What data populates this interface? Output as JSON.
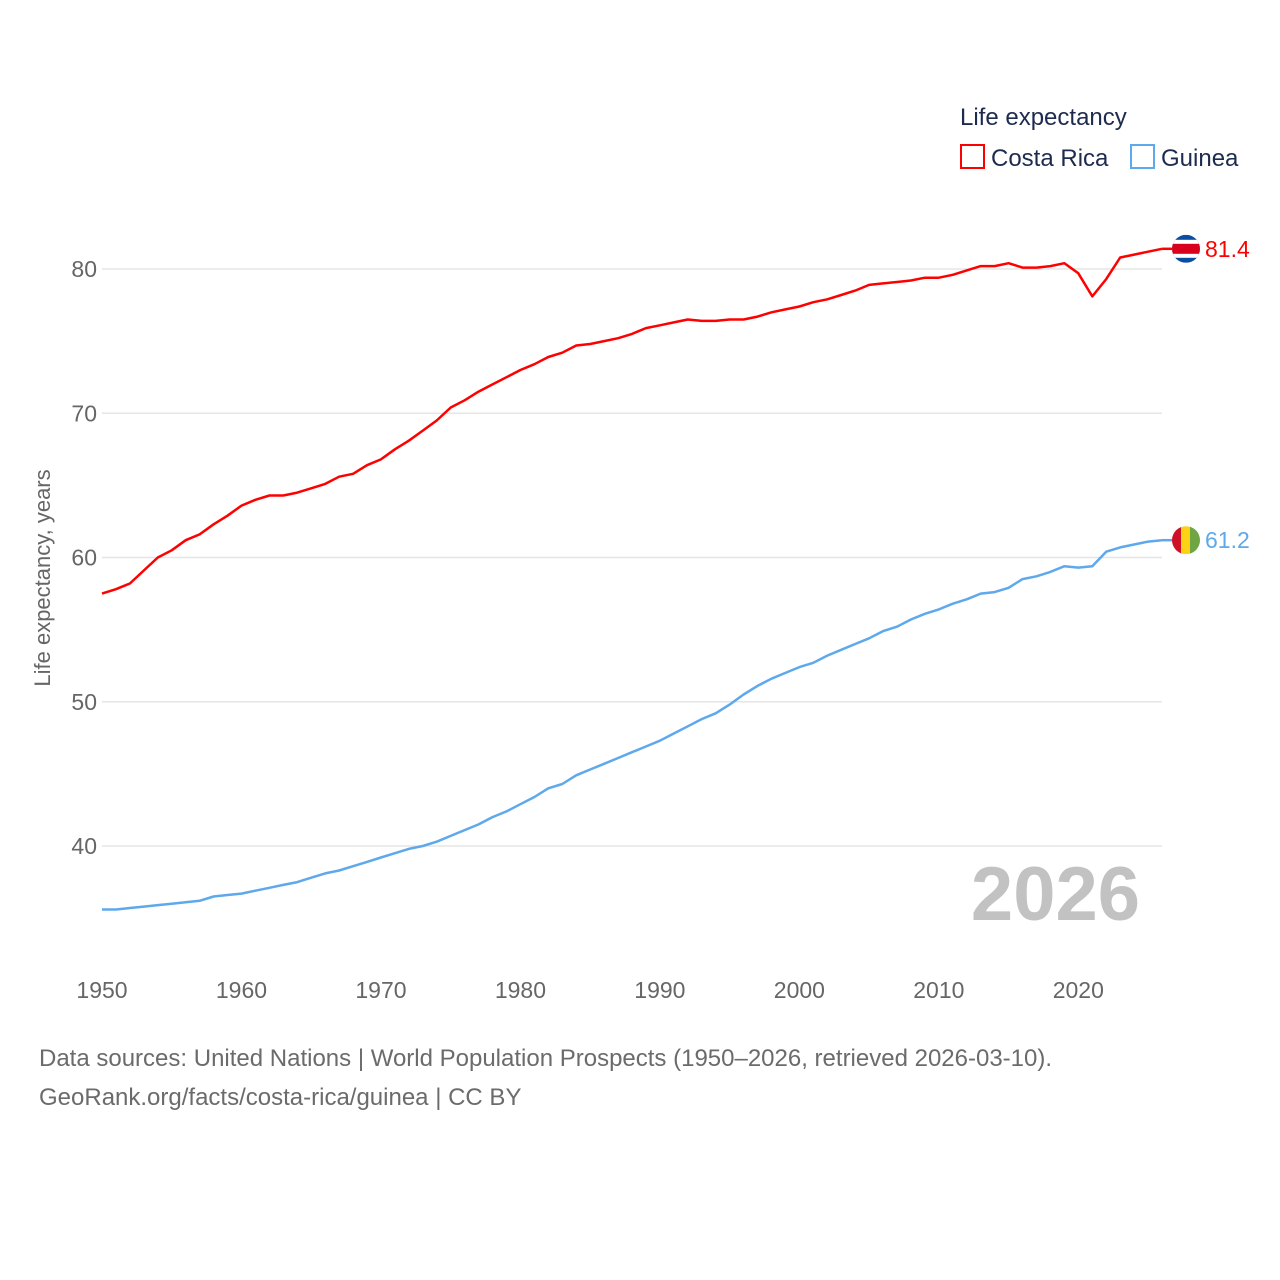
{
  "chart_data": {
    "type": "line",
    "ylabel": "Life expectancy, years",
    "xlabel": "",
    "xlim": [
      1950,
      2026
    ],
    "ylim": [
      33.5,
      84
    ],
    "yticks": [
      40,
      50,
      60,
      70,
      80
    ],
    "xticks": [
      1950,
      1960,
      1970,
      1980,
      1990,
      2000,
      2010,
      2020
    ],
    "grid": true,
    "legend": {
      "title": "Life expectancy",
      "placement": "top-right"
    },
    "year_label": "2026",
    "x_start": 1950,
    "series": [
      {
        "name": "Costa Rica",
        "color": "#ff0000",
        "end_label": "81.4",
        "values": [
          57.5,
          57.8,
          58.2,
          59.1,
          60.0,
          60.5,
          61.2,
          61.6,
          62.3,
          62.9,
          63.6,
          64.0,
          64.3,
          64.3,
          64.5,
          64.8,
          65.1,
          65.6,
          65.8,
          66.4,
          66.8,
          67.5,
          68.1,
          68.8,
          69.5,
          70.4,
          70.9,
          71.5,
          72.0,
          72.5,
          73.0,
          73.4,
          73.9,
          74.2,
          74.7,
          74.8,
          75.0,
          75.2,
          75.5,
          75.9,
          76.1,
          76.3,
          76.5,
          76.4,
          76.4,
          76.5,
          76.5,
          76.7,
          77.0,
          77.2,
          77.4,
          77.7,
          77.9,
          78.2,
          78.5,
          78.9,
          79.0,
          79.1,
          79.2,
          79.4,
          79.4,
          79.6,
          79.9,
          80.2,
          80.2,
          80.4,
          80.1,
          80.1,
          80.2,
          80.4,
          79.7,
          78.1,
          79.3,
          80.8,
          81.0,
          81.2,
          81.4
        ]
      },
      {
        "name": "Guinea",
        "color": "#5ea8ec",
        "end_label": "61.2",
        "values": [
          35.6,
          35.6,
          35.7,
          35.8,
          35.9,
          36.0,
          36.1,
          36.2,
          36.5,
          36.6,
          36.7,
          36.9,
          37.1,
          37.3,
          37.5,
          37.8,
          38.1,
          38.3,
          38.6,
          38.9,
          39.2,
          39.5,
          39.8,
          40.0,
          40.3,
          40.7,
          41.1,
          41.5,
          42.0,
          42.4,
          42.9,
          43.4,
          44.0,
          44.3,
          44.9,
          45.3,
          45.7,
          46.1,
          46.5,
          46.9,
          47.3,
          47.8,
          48.3,
          48.8,
          49.2,
          49.8,
          50.5,
          51.1,
          51.6,
          52.0,
          52.4,
          52.7,
          53.2,
          53.6,
          54.0,
          54.4,
          54.9,
          55.2,
          55.7,
          56.1,
          56.4,
          56.8,
          57.1,
          57.5,
          57.6,
          57.9,
          58.5,
          58.7,
          59.0,
          59.4,
          59.3,
          59.4,
          60.4,
          60.7,
          60.9,
          61.1,
          61.2
        ]
      }
    ]
  },
  "footer": {
    "line1": "Data sources: United Nations | World Population Prospects (1950–2026, retrieved 2026-03-10).",
    "line2": "GeoRank.org/facts/costa-rica/guinea | CC BY"
  }
}
